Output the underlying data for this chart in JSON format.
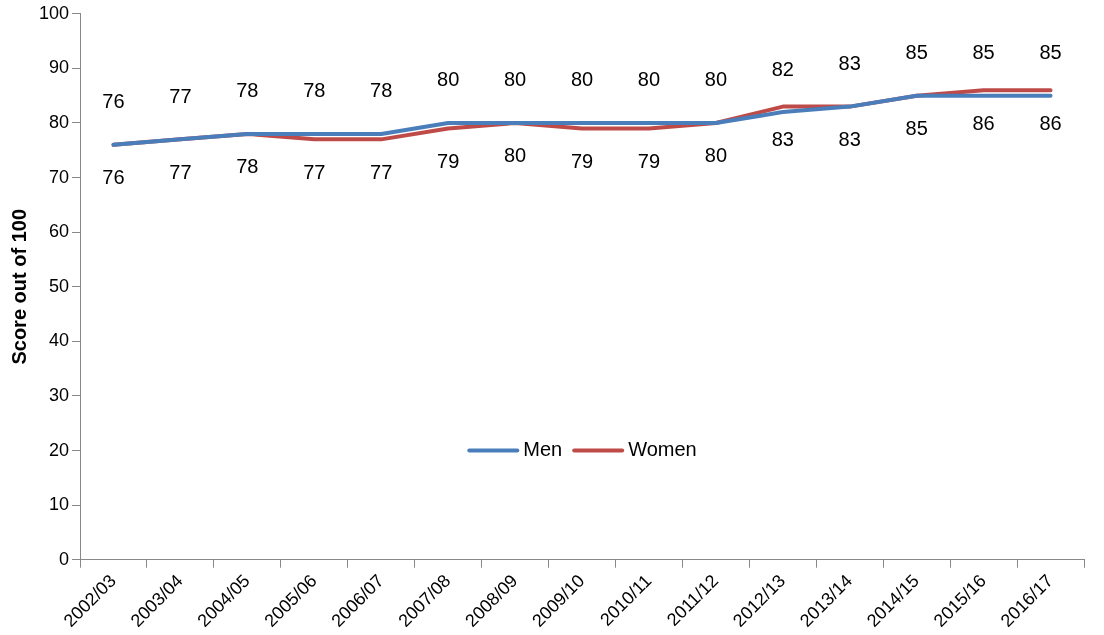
{
  "chart_data": {
    "type": "line",
    "ylabel": "Score out of 100",
    "categories": [
      "2002/03",
      "2003/04",
      "2004/05",
      "2005/06",
      "2006/07",
      "2007/08",
      "2008/09",
      "2009/10",
      "2010/11",
      "2011/12",
      "2012/13",
      "2013/14",
      "2014/15",
      "2015/16",
      "2016/17"
    ],
    "series": [
      {
        "name": "Men",
        "color": "#4a7ebb",
        "values": [
          76,
          77,
          78,
          78,
          78,
          80,
          80,
          80,
          80,
          80,
          82,
          83,
          85,
          85,
          85
        ]
      },
      {
        "name": "Women",
        "color": "#be4b48",
        "values": [
          76,
          77,
          78,
          77,
          77,
          79,
          80,
          79,
          79,
          80,
          83,
          83,
          85,
          86,
          86
        ]
      }
    ],
    "ylim": [
      0,
      100
    ],
    "yticks": [
      0,
      10,
      20,
      30,
      40,
      50,
      60,
      70,
      80,
      90,
      100
    ],
    "grid": false,
    "legend": "center",
    "data_labels": true,
    "marker": "none"
  }
}
